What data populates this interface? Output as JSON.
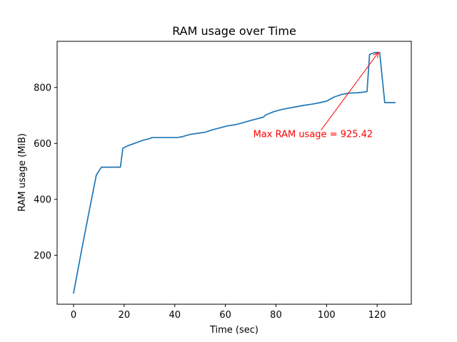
{
  "chart_data": {
    "type": "line",
    "title": "RAM usage over Time",
    "xlabel": "Time (sec)",
    "ylabel": "RAM usage (MiB)",
    "xlim": [
      -6.5,
      133.5
    ],
    "ylim": [
      25,
      965
    ],
    "xticks": [
      0,
      20,
      40,
      60,
      80,
      100,
      120
    ],
    "yticks": [
      200,
      400,
      600,
      800
    ],
    "grid": false,
    "series": [
      {
        "color": "#1f77b4",
        "x": [
          0,
          3,
          6,
          9,
          11,
          14,
          17,
          18.5,
          19.5,
          21,
          24,
          27,
          30,
          31,
          33,
          36,
          39,
          41,
          43,
          46,
          49,
          52,
          55,
          58,
          61,
          64,
          67,
          70,
          73,
          75,
          76,
          79,
          82,
          85,
          88,
          91,
          94,
          97,
          100,
          103,
          106,
          109,
          112,
          116,
          117,
          118.5,
          119.5,
          121,
          123,
          125,
          127
        ],
        "y": [
          65,
          210,
          350,
          487,
          515,
          515,
          515,
          515,
          583,
          590,
          600,
          610,
          617,
          621,
          621,
          621,
          621,
          621,
          624,
          632,
          636,
          640,
          649,
          656,
          663,
          667,
          674,
          682,
          689,
          694,
          702,
          713,
          721,
          726,
          731,
          736,
          740,
          745,
          751,
          766,
          775,
          780,
          781,
          785,
          918,
          923,
          925.42,
          925,
          746,
          746,
          746
        ]
      }
    ],
    "annotations": [
      {
        "text": "Max RAM usage = 925.42",
        "x": 120.5,
        "y": 925.42,
        "text_x": 71,
        "text_y": 622,
        "color": "#ff0000"
      }
    ]
  }
}
